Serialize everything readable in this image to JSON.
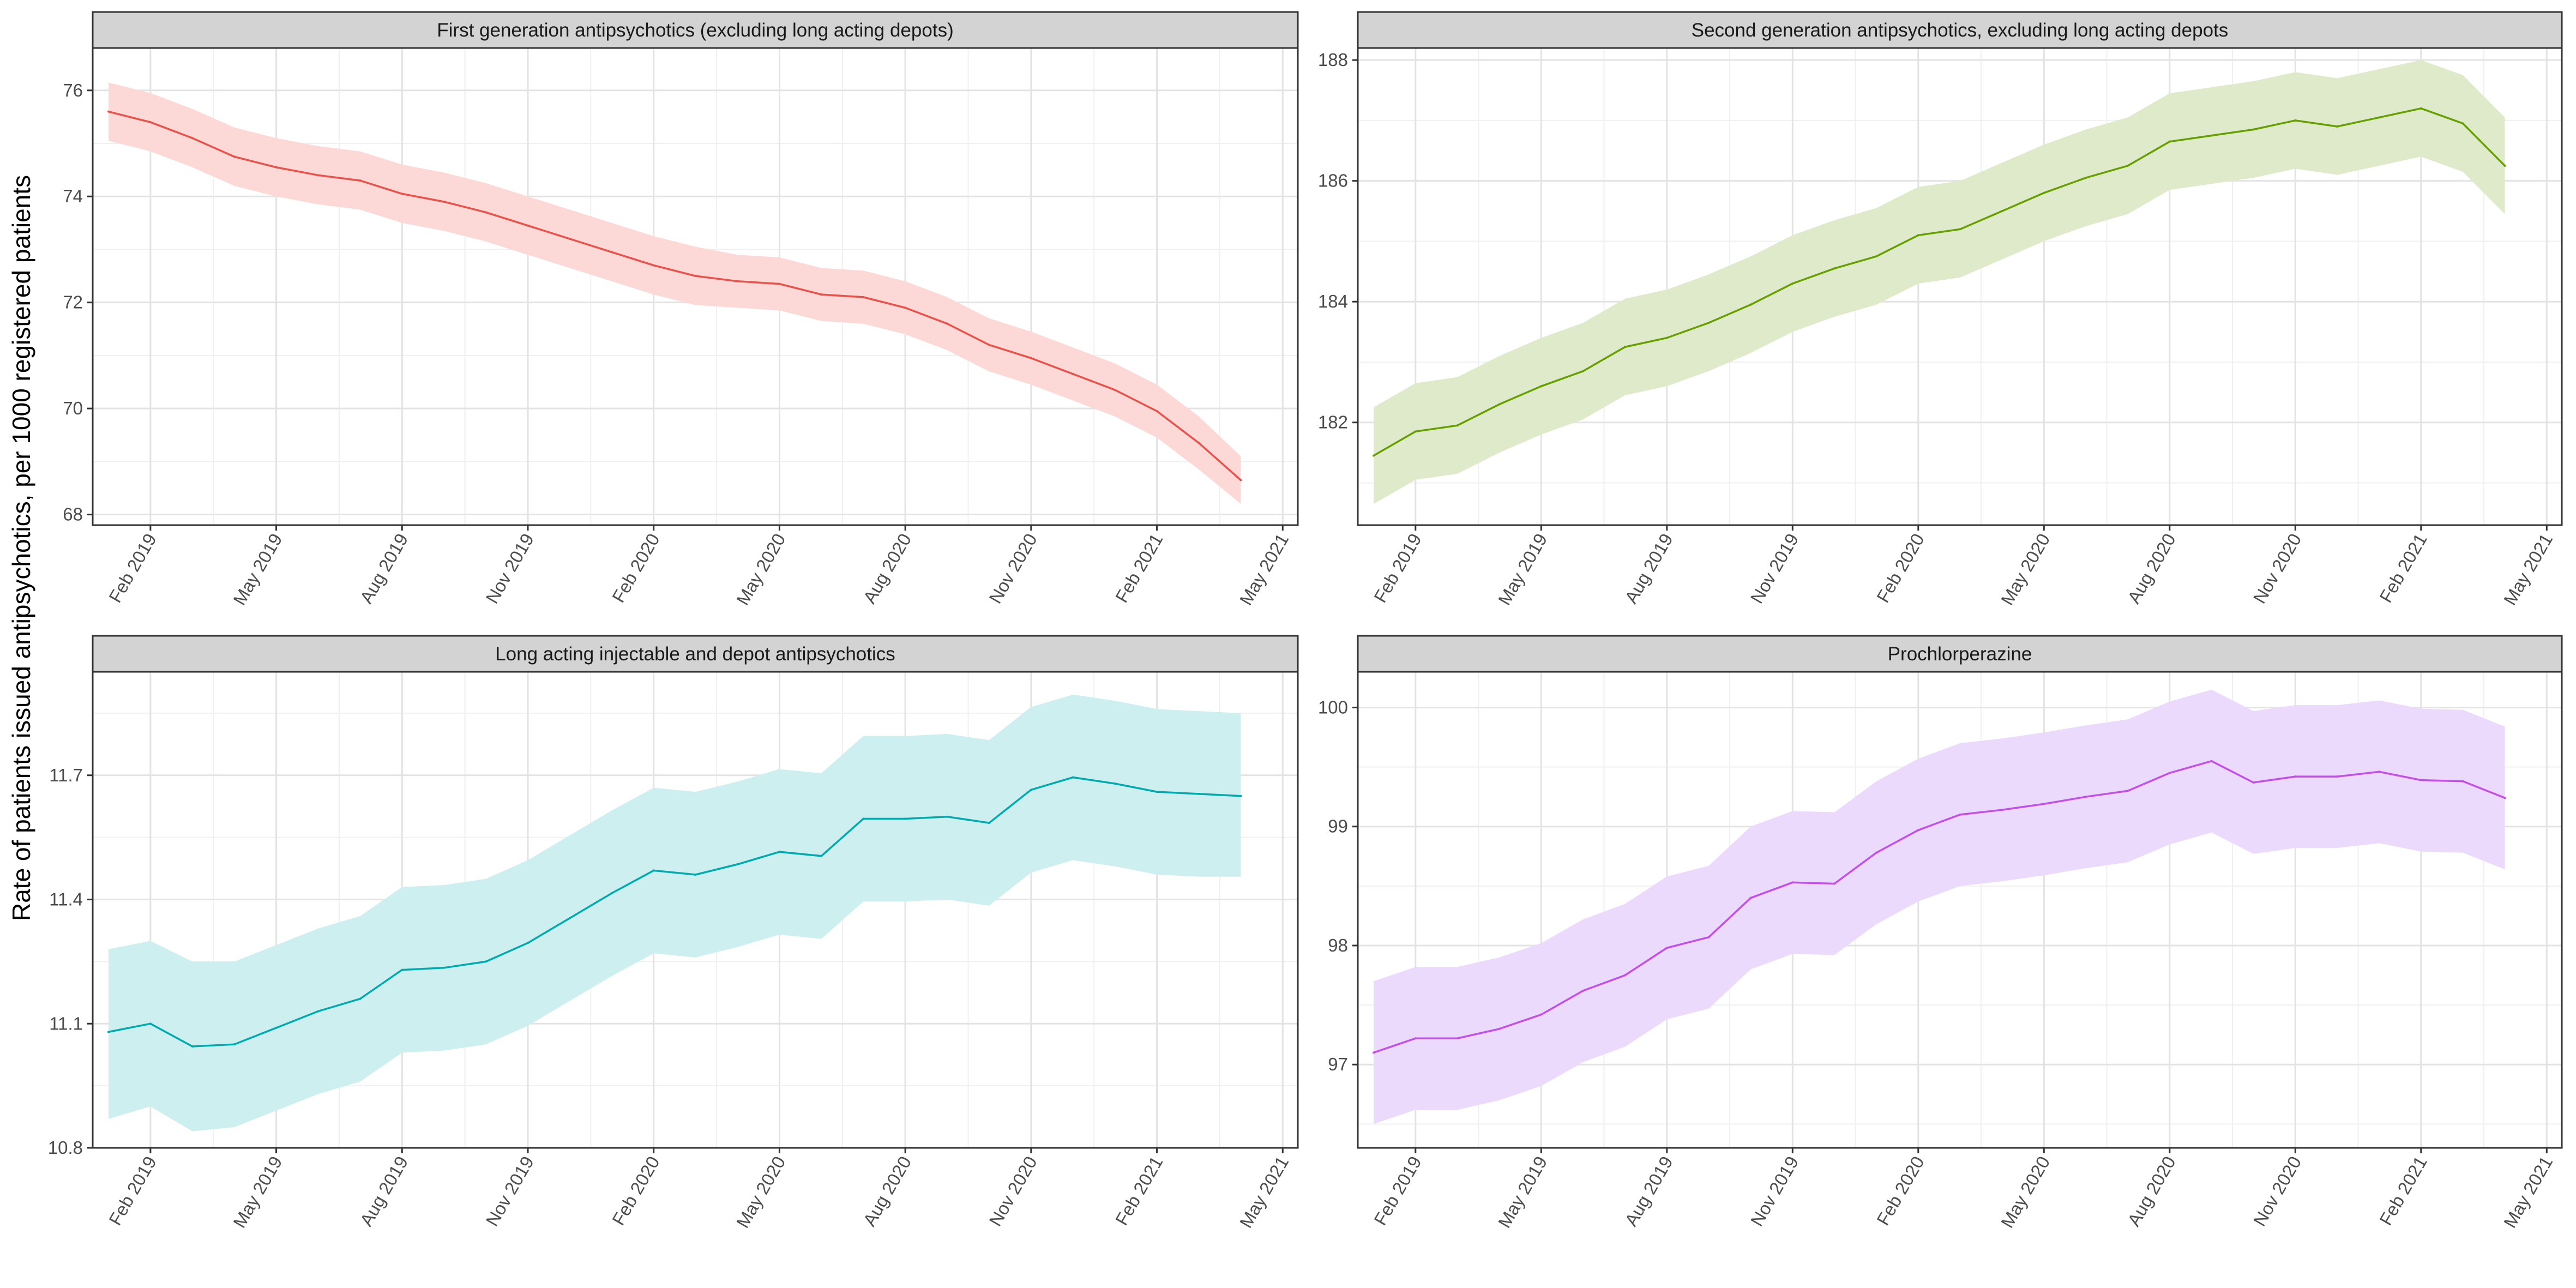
{
  "figure": {
    "y_axis_label": "Rate of patients issued antipsychotics, per 1000 registered patients"
  },
  "chart_data": [
    {
      "type": "line",
      "title": "First generation antipsychotics (excluding long acting depots)",
      "color": "#e8524a",
      "band_color": "#fcd9d7",
      "xlim": [
        "2018-12-20",
        "2021-05-12"
      ],
      "ylim": [
        67.8,
        76.8
      ],
      "y_ticks": [
        68,
        70,
        72,
        74,
        76
      ],
      "x_ticks": [
        "Feb 2019",
        "May 2019",
        "Aug 2019",
        "Nov 2019",
        "Feb 2020",
        "May 2020",
        "Aug 2020",
        "Nov 2020",
        "Feb 2021",
        "May 2021"
      ],
      "x": [
        "2019-01",
        "2019-02",
        "2019-03",
        "2019-04",
        "2019-05",
        "2019-06",
        "2019-07",
        "2019-08",
        "2019-09",
        "2019-10",
        "2019-11",
        "2019-12",
        "2020-01",
        "2020-02",
        "2020-03",
        "2020-04",
        "2020-05",
        "2020-06",
        "2020-07",
        "2020-08",
        "2020-09",
        "2020-10",
        "2020-11",
        "2020-12",
        "2021-01",
        "2021-02",
        "2021-03",
        "2021-04"
      ],
      "values": [
        75.6,
        75.4,
        75.1,
        74.75,
        74.55,
        74.4,
        74.3,
        74.05,
        73.9,
        73.7,
        73.45,
        73.2,
        72.95,
        72.7,
        72.5,
        72.4,
        72.35,
        72.15,
        72.1,
        71.9,
        71.6,
        71.2,
        70.95,
        70.65,
        70.35,
        69.95,
        69.35,
        68.65
      ],
      "lower": [
        75.05,
        74.85,
        74.55,
        74.2,
        74.0,
        73.85,
        73.75,
        73.5,
        73.35,
        73.15,
        72.9,
        72.65,
        72.4,
        72.15,
        71.95,
        71.9,
        71.85,
        71.65,
        71.6,
        71.4,
        71.1,
        70.7,
        70.45,
        70.15,
        69.85,
        69.45,
        68.85,
        68.2
      ],
      "upper": [
        76.15,
        75.95,
        75.65,
        75.3,
        75.1,
        74.95,
        74.85,
        74.6,
        74.45,
        74.25,
        74.0,
        73.75,
        73.5,
        73.25,
        73.05,
        72.9,
        72.85,
        72.65,
        72.6,
        72.4,
        72.1,
        71.7,
        71.45,
        71.15,
        70.85,
        70.45,
        69.85,
        69.1
      ]
    },
    {
      "type": "line",
      "title": "Second generation antipsychotics, excluding long acting depots",
      "color": "#66a000",
      "band_color": "#dfeacb",
      "xlim": [
        "2018-12-20",
        "2021-05-12"
      ],
      "ylim": [
        180.3,
        188.2
      ],
      "y_ticks": [
        182,
        184,
        186,
        188
      ],
      "x_ticks": [
        "Feb 2019",
        "May 2019",
        "Aug 2019",
        "Nov 2019",
        "Feb 2020",
        "May 2020",
        "Aug 2020",
        "Nov 2020",
        "Feb 2021",
        "May 2021"
      ],
      "x": [
        "2019-01",
        "2019-02",
        "2019-03",
        "2019-04",
        "2019-05",
        "2019-06",
        "2019-07",
        "2019-08",
        "2019-09",
        "2019-10",
        "2019-11",
        "2019-12",
        "2020-01",
        "2020-02",
        "2020-03",
        "2020-04",
        "2020-05",
        "2020-06",
        "2020-07",
        "2020-08",
        "2020-09",
        "2020-10",
        "2020-11",
        "2020-12",
        "2021-01",
        "2021-02",
        "2021-03",
        "2021-04"
      ],
      "values": [
        181.45,
        181.85,
        181.95,
        182.3,
        182.6,
        182.85,
        183.25,
        183.4,
        183.65,
        183.95,
        184.3,
        184.55,
        184.75,
        185.1,
        185.2,
        185.5,
        185.8,
        186.05,
        186.25,
        186.65,
        186.75,
        186.85,
        187.0,
        186.9,
        187.05,
        187.2,
        186.95,
        186.25
      ],
      "lower": [
        180.65,
        181.05,
        181.15,
        181.5,
        181.8,
        182.05,
        182.45,
        182.6,
        182.85,
        183.15,
        183.5,
        183.75,
        183.95,
        184.3,
        184.4,
        184.7,
        185.0,
        185.25,
        185.45,
        185.85,
        185.95,
        186.05,
        186.2,
        186.1,
        186.25,
        186.4,
        186.15,
        185.45
      ],
      "upper": [
        182.25,
        182.65,
        182.75,
        183.1,
        183.4,
        183.65,
        184.05,
        184.2,
        184.45,
        184.75,
        185.1,
        185.35,
        185.55,
        185.9,
        186.0,
        186.3,
        186.6,
        186.85,
        187.05,
        187.45,
        187.55,
        187.65,
        187.8,
        187.7,
        187.85,
        188.0,
        187.75,
        187.05
      ]
    },
    {
      "type": "line",
      "title": "Long acting injectable and depot antipsychotics",
      "color": "#00aaae",
      "band_color": "#cdeff0",
      "xlim": [
        "2018-12-20",
        "2021-05-12"
      ],
      "ylim": [
        10.8,
        11.95
      ],
      "y_ticks": [
        10.8,
        11.1,
        11.4,
        11.7
      ],
      "x_ticks": [
        "Feb 2019",
        "May 2019",
        "Aug 2019",
        "Nov 2019",
        "Feb 2020",
        "May 2020",
        "Aug 2020",
        "Nov 2020",
        "Feb 2021",
        "May 2021"
      ],
      "x": [
        "2019-01",
        "2019-02",
        "2019-03",
        "2019-04",
        "2019-05",
        "2019-06",
        "2019-07",
        "2019-08",
        "2019-09",
        "2019-10",
        "2019-11",
        "2019-12",
        "2020-01",
        "2020-02",
        "2020-03",
        "2020-04",
        "2020-05",
        "2020-06",
        "2020-07",
        "2020-08",
        "2020-09",
        "2020-10",
        "2020-11",
        "2020-12",
        "2021-01",
        "2021-02",
        "2021-03",
        "2021-04"
      ],
      "values": [
        11.08,
        11.1,
        11.045,
        11.05,
        11.09,
        11.13,
        11.16,
        11.23,
        11.235,
        11.25,
        11.295,
        11.355,
        11.415,
        11.47,
        11.46,
        11.485,
        11.515,
        11.505,
        11.595,
        11.595,
        11.6,
        11.585,
        11.665,
        11.695,
        11.68,
        11.66,
        11.655,
        11.65
      ],
      "lower": [
        10.87,
        10.9,
        10.84,
        10.85,
        10.89,
        10.93,
        10.96,
        11.03,
        11.035,
        11.05,
        11.095,
        11.155,
        11.215,
        11.27,
        11.26,
        11.285,
        11.315,
        11.305,
        11.395,
        11.395,
        11.4,
        11.385,
        11.465,
        11.495,
        11.48,
        11.46,
        11.455,
        11.455
      ],
      "upper": [
        11.28,
        11.3,
        11.25,
        11.25,
        11.29,
        11.33,
        11.36,
        11.43,
        11.435,
        11.45,
        11.495,
        11.555,
        11.615,
        11.67,
        11.66,
        11.685,
        11.715,
        11.705,
        11.795,
        11.795,
        11.8,
        11.785,
        11.865,
        11.895,
        11.88,
        11.86,
        11.855,
        11.85
      ]
    },
    {
      "type": "line",
      "title": "Prochlorperazine",
      "color": "#c34fe8",
      "band_color": "#ecdafd",
      "xlim": [
        "2018-12-20",
        "2021-05-12"
      ],
      "ylim": [
        96.3,
        100.3
      ],
      "y_ticks": [
        97,
        98,
        99,
        100
      ],
      "x_ticks": [
        "Feb 2019",
        "May 2019",
        "Aug 2019",
        "Nov 2019",
        "Feb 2020",
        "May 2020",
        "Aug 2020",
        "Nov 2020",
        "Feb 2021",
        "May 2021"
      ],
      "x": [
        "2019-01",
        "2019-02",
        "2019-03",
        "2019-04",
        "2019-05",
        "2019-06",
        "2019-07",
        "2019-08",
        "2019-09",
        "2019-10",
        "2019-11",
        "2019-12",
        "2020-01",
        "2020-02",
        "2020-03",
        "2020-04",
        "2020-05",
        "2020-06",
        "2020-07",
        "2020-08",
        "2020-09",
        "2020-10",
        "2020-11",
        "2020-12",
        "2021-01",
        "2021-02",
        "2021-03",
        "2021-04"
      ],
      "values": [
        97.1,
        97.22,
        97.22,
        97.3,
        97.42,
        97.62,
        97.75,
        97.98,
        98.07,
        98.4,
        98.53,
        98.52,
        98.78,
        98.97,
        99.1,
        99.14,
        99.19,
        99.25,
        99.3,
        99.45,
        99.55,
        99.37,
        99.42,
        99.42,
        99.46,
        99.39,
        99.38,
        99.24
      ],
      "lower": [
        96.5,
        96.62,
        96.62,
        96.7,
        96.82,
        97.02,
        97.15,
        97.38,
        97.47,
        97.8,
        97.93,
        97.92,
        98.18,
        98.37,
        98.5,
        98.54,
        98.59,
        98.65,
        98.7,
        98.85,
        98.95,
        98.77,
        98.82,
        98.82,
        98.86,
        98.79,
        98.78,
        98.64
      ],
      "upper": [
        97.7,
        97.82,
        97.82,
        97.9,
        98.02,
        98.22,
        98.35,
        98.58,
        98.67,
        99.0,
        99.13,
        99.12,
        99.38,
        99.57,
        99.7,
        99.74,
        99.79,
        99.85,
        99.9,
        100.05,
        100.15,
        99.97,
        100.02,
        100.02,
        100.06,
        99.99,
        99.98,
        99.84
      ]
    }
  ]
}
